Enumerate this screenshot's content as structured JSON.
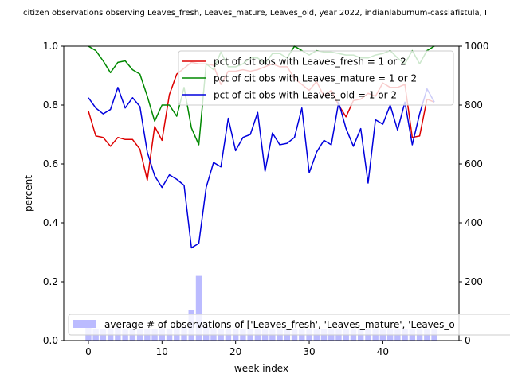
{
  "chart_data": {
    "type": "line",
    "title": "citizen observations observing Leaves_fresh, Leaves_mature, Leaves_old, year 2022, indianlaburnum-cassiafistula, I",
    "xlabel": "week index",
    "ylabel": "percent",
    "xlim": [
      -3.35,
      50.35
    ],
    "ylim": [
      0,
      1
    ],
    "y2lim": [
      0,
      1000
    ],
    "x_ticks": [
      0,
      10,
      20,
      30,
      40
    ],
    "y_ticks": [
      0.0,
      0.2,
      0.4,
      0.6,
      0.8,
      1.0
    ],
    "y2_ticks": [
      0,
      200,
      400,
      600,
      800,
      1000
    ],
    "y_tick_labels": [
      "0.0",
      "0.2",
      "0.4",
      "0.6",
      "0.8",
      "1.0"
    ],
    "legend_placement": "top-right",
    "bar_legend_placement": "bottom-left",
    "grid": false,
    "series": [
      {
        "name": "pct of cit obs with Leaves_fresh = 1 or 2",
        "color": "#dd0000",
        "values": [
          0.78,
          0.695,
          0.69,
          0.66,
          0.69,
          0.683,
          0.683,
          0.65,
          0.545,
          0.727,
          0.68,
          0.835,
          0.905,
          0.925,
          0.945,
          0.94,
          0.94,
          0.935,
          0.87,
          0.915,
          0.915,
          0.92,
          0.915,
          0.92,
          0.93,
          0.94,
          0.93,
          0.93,
          0.89,
          0.87,
          0.85,
          0.88,
          0.83,
          0.85,
          0.8,
          0.76,
          0.815,
          0.82,
          0.84,
          0.83,
          0.875,
          0.86,
          0.86,
          0.87,
          0.69,
          0.695,
          0.82,
          0.81
        ]
      },
      {
        "name": "pct of cit obs with Leaves_mature = 1 or 2",
        "color": "#008800",
        "values": [
          1.0,
          0.985,
          0.95,
          0.91,
          0.945,
          0.95,
          0.92,
          0.905,
          0.83,
          0.745,
          0.8,
          0.8,
          0.762,
          0.86,
          0.722,
          0.665,
          0.94,
          0.92,
          0.98,
          0.93,
          0.93,
          0.94,
          0.96,
          0.96,
          0.94,
          0.975,
          0.975,
          0.96,
          1.0,
          0.985,
          0.97,
          0.985,
          0.98,
          0.98,
          0.975,
          0.97,
          0.97,
          0.96,
          0.96,
          0.97,
          0.975,
          0.985,
          0.96,
          0.94,
          0.985,
          0.94,
          0.985,
          1.0
        ]
      },
      {
        "name": "pct of cit obs with Leaves_old = 1 or 2",
        "color": "#0000dd",
        "values": [
          0.825,
          0.79,
          0.77,
          0.785,
          0.86,
          0.79,
          0.825,
          0.795,
          0.64,
          0.56,
          0.52,
          0.563,
          0.548,
          0.527,
          0.315,
          0.33,
          0.52,
          0.605,
          0.59,
          0.755,
          0.645,
          0.69,
          0.7,
          0.775,
          0.575,
          0.705,
          0.665,
          0.67,
          0.69,
          0.79,
          0.57,
          0.64,
          0.68,
          0.665,
          0.81,
          0.72,
          0.66,
          0.72,
          0.535,
          0.75,
          0.735,
          0.8,
          0.715,
          0.81,
          0.665,
          0.77,
          0.855,
          0.81
        ]
      }
    ],
    "bar_series": {
      "name": "average # of observations of ['Leaves_fresh', 'Leaves_mature', 'Leaves_o",
      "color": "#bbbbff",
      "axis": "right",
      "values": [
        45,
        40,
        38,
        42,
        45,
        40,
        40,
        38,
        38,
        40,
        42,
        40,
        42,
        45,
        105,
        220,
        45,
        42,
        40,
        40,
        38,
        38,
        38,
        38,
        38,
        38,
        38,
        38,
        38,
        38,
        38,
        38,
        38,
        38,
        38,
        38,
        38,
        38,
        38,
        38,
        38,
        38,
        38,
        38,
        38,
        38,
        38,
        38
      ]
    }
  }
}
